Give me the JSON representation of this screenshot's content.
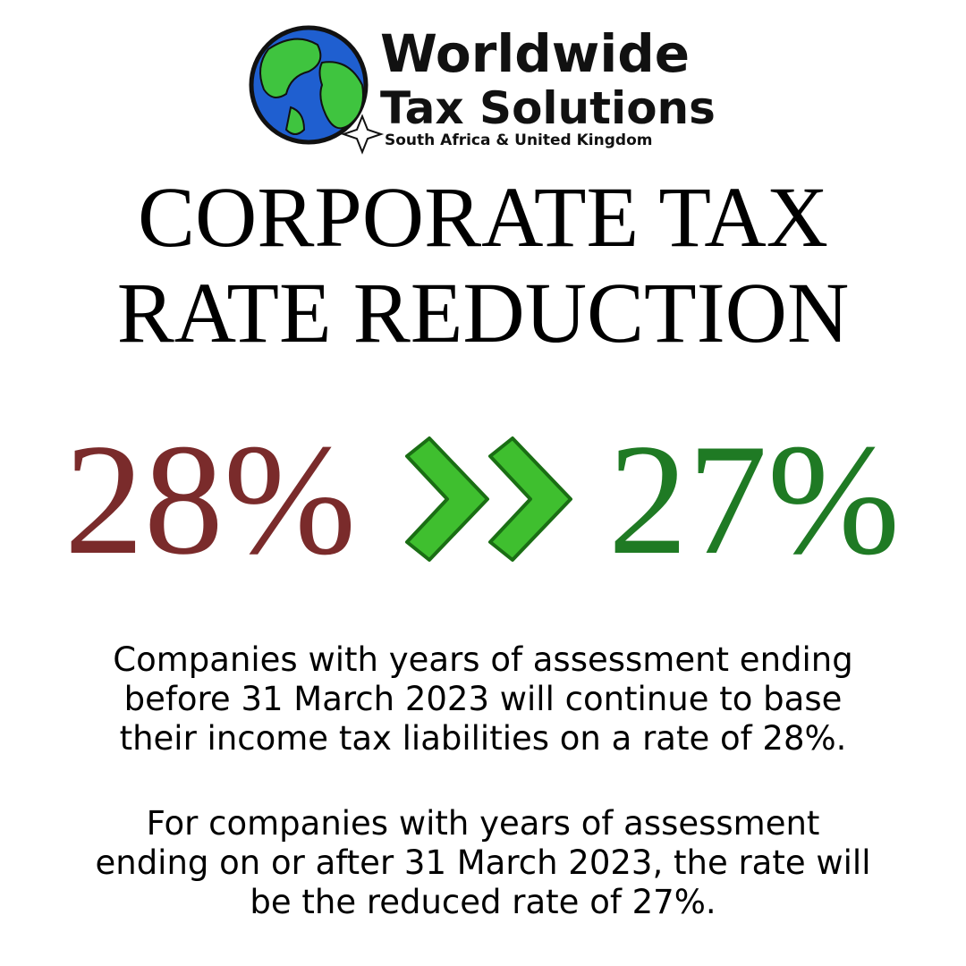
{
  "logo": {
    "name_line1": "Worldwide",
    "name_line2": "Tax Solutions",
    "tagline": "South Africa & United Kingdom"
  },
  "headline": {
    "lines": [
      "CORPORATE TAX",
      "RATE REDUCTION"
    ]
  },
  "rates": {
    "old": "28%",
    "new": "27%"
  },
  "body": {
    "paragraphs": [
      [
        "Companies with years of assessment ending",
        "before 31 March 2023 will continue to base",
        "their income tax liabilities on a rate of 28%."
      ],
      [
        "For companies with years of assessment",
        "ending on or after 31 March 2023, the rate will",
        "be the reduced rate of 27%."
      ]
    ]
  }
}
